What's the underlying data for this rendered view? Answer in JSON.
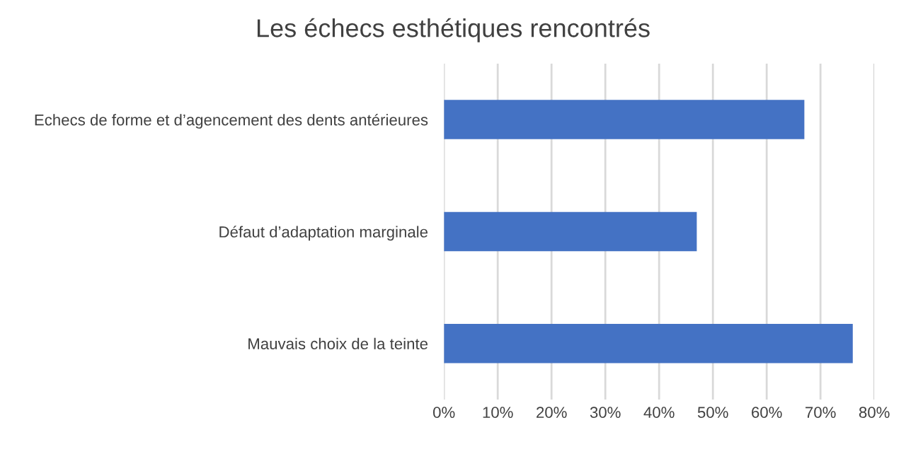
{
  "chart_data": {
    "type": "bar",
    "orientation": "horizontal",
    "title": "Les échecs esthétiques rencontrés",
    "categories": [
      "Echecs de forme et d’agencement des dents antérieures",
      "Défaut d’adaptation marginale",
      "Mauvais choix de la teinte"
    ],
    "values": [
      67,
      47,
      76
    ],
    "color": "#4472c4",
    "xlim": [
      0,
      80
    ],
    "xticks": [
      {
        "value": 0,
        "label": "0%"
      },
      {
        "value": 10,
        "label": "10%"
      },
      {
        "value": 20,
        "label": "20%"
      },
      {
        "value": 30,
        "label": "30%"
      },
      {
        "value": 40,
        "label": "40%"
      },
      {
        "value": 50,
        "label": "50%"
      },
      {
        "value": 60,
        "label": "60%"
      },
      {
        "value": 70,
        "label": "70%"
      },
      {
        "value": 80,
        "label": "80%"
      }
    ],
    "grid": "x",
    "legend": false
  }
}
